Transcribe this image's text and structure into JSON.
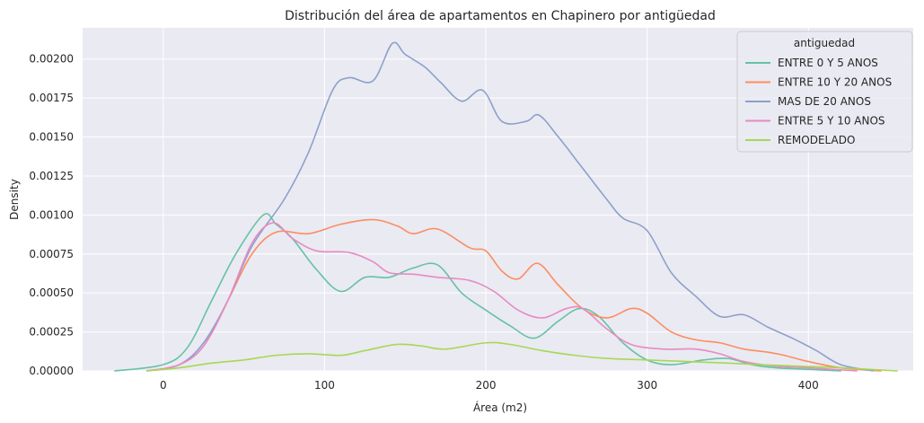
{
  "chart_data": {
    "type": "line",
    "title": "Distribución del área de apartamentos en Chapinero por antigüedad",
    "xlabel": "Área (m2)",
    "ylabel": "Density",
    "xlim": [
      -50,
      465
    ],
    "ylim": [
      0,
      0.0022
    ],
    "xticks": [
      0,
      100,
      200,
      300,
      400
    ],
    "xtick_labels": [
      "0",
      "100",
      "200",
      "300",
      "400"
    ],
    "yticks": [
      0,
      0.00025,
      0.0005,
      0.00075,
      0.001,
      0.00125,
      0.0015,
      0.00175,
      0.002
    ],
    "ytick_labels": [
      "0.00000",
      "0.00025",
      "0.00050",
      "0.00075",
      "0.00100",
      "0.00125",
      "0.00150",
      "0.00175",
      "0.00200"
    ],
    "grid": true,
    "background": "#eaeaf2",
    "legend": {
      "title": "antiguedad",
      "placement": "top-right"
    },
    "series": [
      {
        "name": "ENTRE 0 Y 5 ANOS",
        "color": "#66c2a5",
        "points": [
          [
            -30,
            0
          ],
          [
            0,
            4e-05
          ],
          [
            15,
            0.00015
          ],
          [
            30,
            0.00045
          ],
          [
            45,
            0.00075
          ],
          [
            62,
            0.001
          ],
          [
            70,
            0.00094
          ],
          [
            80,
            0.00085
          ],
          [
            95,
            0.00065
          ],
          [
            110,
            0.00051
          ],
          [
            125,
            0.0006
          ],
          [
            140,
            0.0006
          ],
          [
            155,
            0.00066
          ],
          [
            170,
            0.00068
          ],
          [
            185,
            0.0005
          ],
          [
            200,
            0.00039
          ],
          [
            215,
            0.00029
          ],
          [
            230,
            0.00021
          ],
          [
            245,
            0.00032
          ],
          [
            258,
            0.0004
          ],
          [
            270,
            0.00035
          ],
          [
            285,
            0.00018
          ],
          [
            300,
            7e-05
          ],
          [
            315,
            4e-05
          ],
          [
            335,
            7e-05
          ],
          [
            350,
            8e-05
          ],
          [
            365,
            4e-05
          ],
          [
            380,
            2e-05
          ],
          [
            400,
            1e-05
          ],
          [
            420,
            0
          ]
        ]
      },
      {
        "name": "ENTRE 10 Y 20 ANOS",
        "color": "#fc8d62",
        "points": [
          [
            -10,
            0
          ],
          [
            10,
            4e-05
          ],
          [
            25,
            0.00016
          ],
          [
            40,
            0.00045
          ],
          [
            55,
            0.00075
          ],
          [
            70,
            0.00089
          ],
          [
            90,
            0.00088
          ],
          [
            110,
            0.00094
          ],
          [
            130,
            0.00097
          ],
          [
            145,
            0.00093
          ],
          [
            155,
            0.00088
          ],
          [
            170,
            0.00091
          ],
          [
            190,
            0.00079
          ],
          [
            200,
            0.00077
          ],
          [
            210,
            0.00064
          ],
          [
            220,
            0.00059
          ],
          [
            232,
            0.00069
          ],
          [
            245,
            0.00055
          ],
          [
            260,
            0.0004
          ],
          [
            275,
            0.00034
          ],
          [
            290,
            0.0004
          ],
          [
            300,
            0.00037
          ],
          [
            315,
            0.00025
          ],
          [
            330,
            0.0002
          ],
          [
            345,
            0.00018
          ],
          [
            360,
            0.00014
          ],
          [
            375,
            0.00012
          ],
          [
            385,
            0.0001
          ],
          [
            400,
            6e-05
          ],
          [
            420,
            2e-05
          ],
          [
            445,
            0
          ]
        ]
      },
      {
        "name": "MAS DE 20 ANOS",
        "color": "#8da0cb",
        "points": [
          [
            -10,
            0
          ],
          [
            10,
            4e-05
          ],
          [
            25,
            0.00018
          ],
          [
            40,
            0.00045
          ],
          [
            55,
            0.0008
          ],
          [
            75,
            0.0011
          ],
          [
            90,
            0.0014
          ],
          [
            105,
            0.0018
          ],
          [
            115,
            0.00188
          ],
          [
            130,
            0.00186
          ],
          [
            142,
            0.0021
          ],
          [
            150,
            0.00203
          ],
          [
            162,
            0.00195
          ],
          [
            172,
            0.00185
          ],
          [
            185,
            0.00173
          ],
          [
            198,
            0.0018
          ],
          [
            210,
            0.0016
          ],
          [
            225,
            0.0016
          ],
          [
            233,
            0.00164
          ],
          [
            245,
            0.0015
          ],
          [
            260,
            0.0013
          ],
          [
            275,
            0.0011
          ],
          [
            285,
            0.00098
          ],
          [
            300,
            0.0009
          ],
          [
            315,
            0.00063
          ],
          [
            330,
            0.00048
          ],
          [
            345,
            0.00035
          ],
          [
            360,
            0.00036
          ],
          [
            375,
            0.00028
          ],
          [
            390,
            0.00021
          ],
          [
            405,
            0.00013
          ],
          [
            420,
            4e-05
          ],
          [
            440,
            0
          ]
        ]
      },
      {
        "name": "ENTRE 5 Y 10 ANOS",
        "color": "#e78ac3",
        "points": [
          [
            -10,
            0
          ],
          [
            10,
            4e-05
          ],
          [
            25,
            0.00016
          ],
          [
            40,
            0.00045
          ],
          [
            55,
            0.00082
          ],
          [
            68,
            0.00095
          ],
          [
            80,
            0.00085
          ],
          [
            95,
            0.00077
          ],
          [
            115,
            0.00076
          ],
          [
            130,
            0.0007
          ],
          [
            140,
            0.00063
          ],
          [
            155,
            0.00062
          ],
          [
            170,
            0.0006
          ],
          [
            190,
            0.00058
          ],
          [
            205,
            0.00051
          ],
          [
            220,
            0.00039
          ],
          [
            235,
            0.00034
          ],
          [
            250,
            0.0004
          ],
          [
            260,
            0.0004
          ],
          [
            275,
            0.00027
          ],
          [
            290,
            0.00017
          ],
          [
            310,
            0.00014
          ],
          [
            330,
            0.00014
          ],
          [
            345,
            0.00011
          ],
          [
            360,
            6e-05
          ],
          [
            380,
            3e-05
          ],
          [
            400,
            2e-05
          ],
          [
            430,
            0
          ]
        ]
      },
      {
        "name": "REMODELADO",
        "color": "#a6d854",
        "points": [
          [
            -10,
            0
          ],
          [
            10,
            2e-05
          ],
          [
            30,
            5e-05
          ],
          [
            50,
            7e-05
          ],
          [
            70,
            0.0001
          ],
          [
            90,
            0.00011
          ],
          [
            110,
            0.0001
          ],
          [
            125,
            0.00013
          ],
          [
            145,
            0.00017
          ],
          [
            160,
            0.00016
          ],
          [
            175,
            0.00014
          ],
          [
            200,
            0.00018
          ],
          [
            215,
            0.00017
          ],
          [
            235,
            0.00013
          ],
          [
            255,
            0.0001
          ],
          [
            275,
            8e-05
          ],
          [
            300,
            7e-05
          ],
          [
            325,
            6e-05
          ],
          [
            350,
            5e-05
          ],
          [
            370,
            4e-05
          ],
          [
            395,
            3e-05
          ],
          [
            420,
            2e-05
          ],
          [
            455,
            0
          ]
        ]
      }
    ]
  }
}
